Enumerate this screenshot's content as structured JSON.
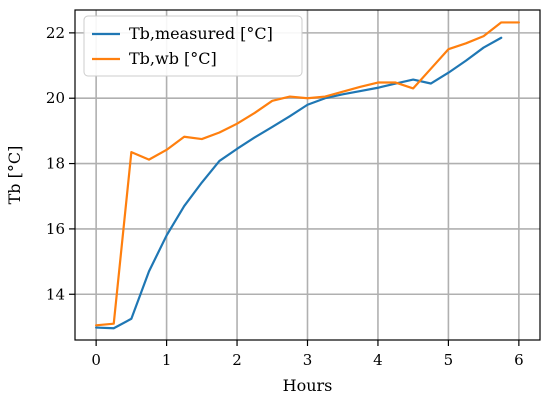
{
  "chart_data": {
    "type": "line",
    "xlabel": "Hours",
    "ylabel": "Tb [°C]",
    "xlim": [
      -0.3,
      6.3
    ],
    "ylim": [
      12.6,
      22.7
    ],
    "xticks": [
      0,
      1,
      2,
      3,
      4,
      5,
      6
    ],
    "yticks": [
      14,
      16,
      18,
      20,
      22
    ],
    "grid": true,
    "legend_position": "top-left",
    "series": [
      {
        "name": "Tb,measured [°C]",
        "color": "#1f77b4",
        "x": [
          0,
          0.25,
          0.5,
          0.75,
          1.0,
          1.25,
          1.5,
          1.75,
          2.0,
          2.25,
          2.5,
          2.75,
          3.0,
          3.25,
          3.5,
          3.75,
          4.0,
          4.25,
          4.5,
          4.75,
          5.0,
          5.25,
          5.5,
          5.75
        ],
        "y": [
          12.98,
          12.96,
          13.25,
          14.7,
          15.8,
          16.7,
          17.42,
          18.08,
          18.45,
          18.8,
          19.12,
          19.45,
          19.8,
          20.0,
          20.12,
          20.22,
          20.32,
          20.45,
          20.57,
          20.45,
          20.78,
          21.15,
          21.55,
          21.85
        ]
      },
      {
        "name": "Tb,wb [°C]",
        "color": "#ff7f0e",
        "x": [
          0,
          0.25,
          0.5,
          0.75,
          1.0,
          1.25,
          1.5,
          1.75,
          2.0,
          2.25,
          2.5,
          2.75,
          3.0,
          3.25,
          3.5,
          3.75,
          4.0,
          4.25,
          4.5,
          4.75,
          5.0,
          5.25,
          5.5,
          5.75,
          6.0
        ],
        "y": [
          13.05,
          13.1,
          18.35,
          18.12,
          18.42,
          18.82,
          18.75,
          18.95,
          19.22,
          19.55,
          19.92,
          20.05,
          20.0,
          20.05,
          20.2,
          20.35,
          20.48,
          20.48,
          20.3,
          20.9,
          21.5,
          21.68,
          21.9,
          22.32,
          22.32
        ]
      }
    ]
  }
}
